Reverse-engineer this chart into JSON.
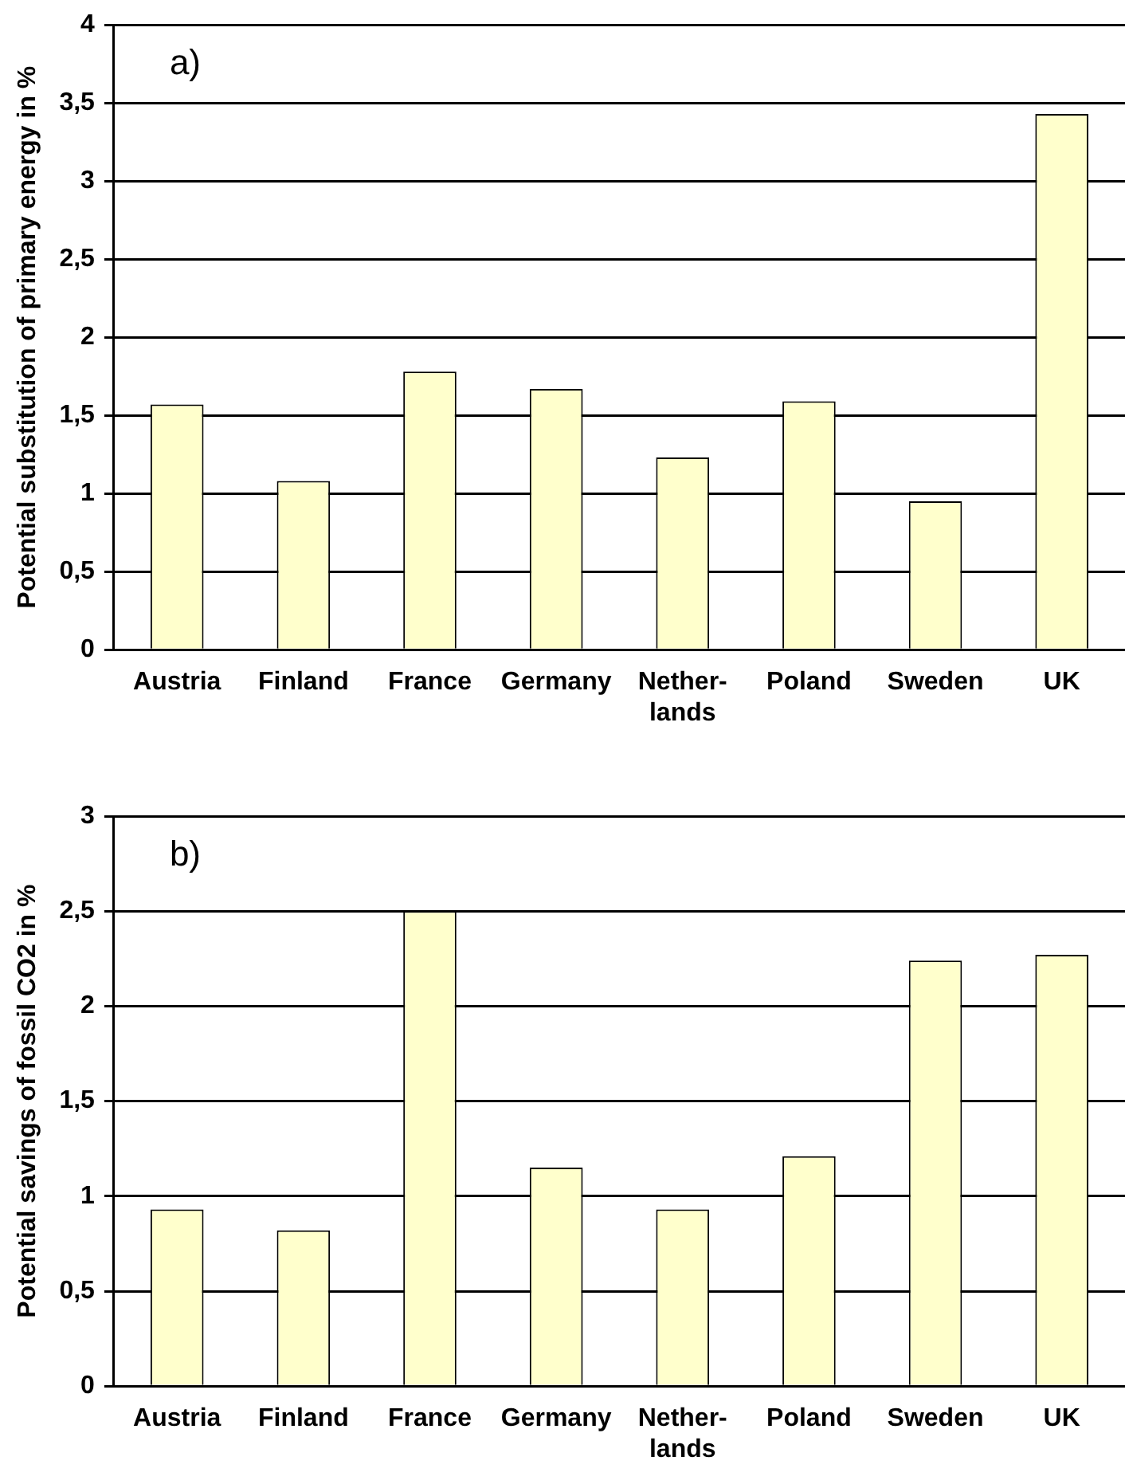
{
  "chart_data": [
    {
      "type": "bar",
      "ylabel": "Potential substitution of primary energy in %",
      "annotations": [
        "a)"
      ],
      "categories": [
        "Austria",
        "Finland",
        "France",
        "Germany",
        "Nether-\nlands",
        "Poland",
        "Sweden",
        "UK"
      ],
      "values": [
        1.57,
        1.08,
        1.78,
        1.67,
        1.23,
        1.59,
        0.95,
        3.43
      ],
      "color": "#ffffcc",
      "ylim": [
        0,
        4
      ],
      "yticks": [
        0,
        {
          "value": 0.5,
          "label": "0,5"
        },
        1,
        {
          "value": 1.5,
          "label": "1,5"
        },
        2,
        {
          "value": 2.5,
          "label": "2,5"
        },
        3,
        {
          "value": 3.5,
          "label": "3,5"
        },
        4
      ],
      "grid": "y"
    },
    {
      "type": "bar",
      "ylabel": "Potential savings of fossil CO2 in %",
      "annotations": [
        "b)"
      ],
      "categories": [
        "Austria",
        "Finland",
        "France",
        "Germany",
        "Nether-\nlands",
        "Poland",
        "Sweden",
        "UK"
      ],
      "values": [
        0.93,
        0.82,
        2.5,
        1.15,
        0.93,
        1.21,
        2.24,
        2.27
      ],
      "color": "#ffffcc",
      "ylim": [
        0,
        3
      ],
      "yticks": [
        0,
        {
          "value": 0.5,
          "label": "0,5"
        },
        1,
        {
          "value": 1.5,
          "label": "1,5"
        },
        2,
        {
          "value": 2.5,
          "label": "2,5"
        },
        3
      ],
      "grid": "y"
    }
  ]
}
